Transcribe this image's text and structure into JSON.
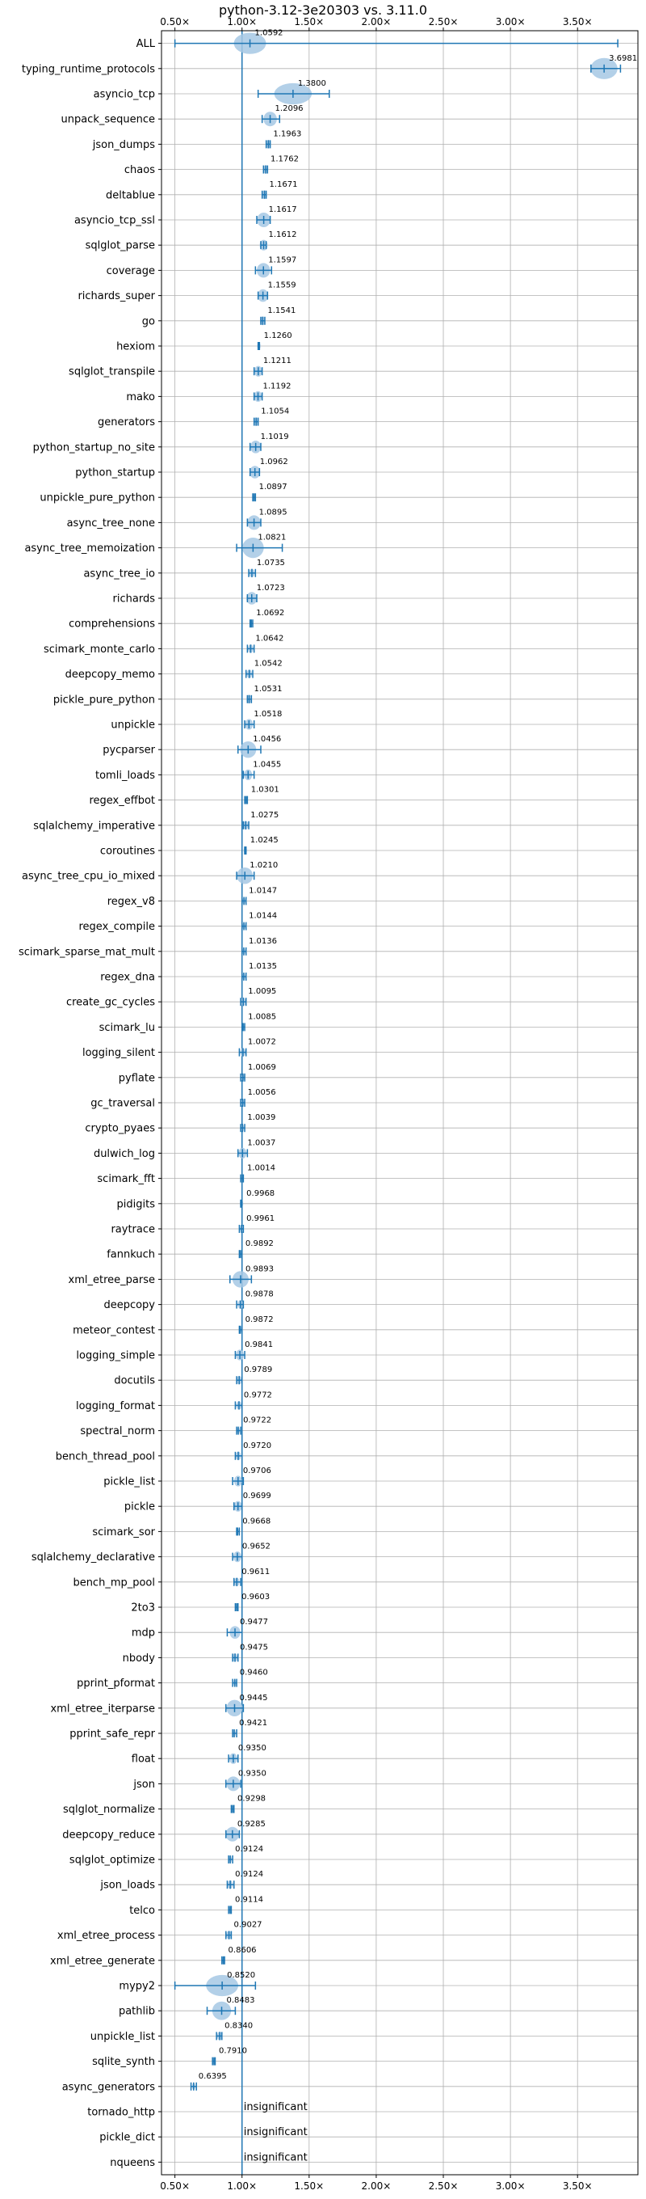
{
  "chart_data": {
    "type": "violin",
    "title": "python-3.12-3e20303 vs. 3.11.0",
    "xlabel": "",
    "ylabel": "",
    "xlim": [
      0.4,
      3.95
    ],
    "x_ticks": [
      0.5,
      1.0,
      1.5,
      2.0,
      2.5,
      3.0,
      3.5
    ],
    "x_tick_labels": [
      "0.50×",
      "1.00×",
      "1.50×",
      "2.00×",
      "2.50×",
      "3.00×",
      "3.50×"
    ],
    "grid": true,
    "reference_line": 1.0,
    "insignificant_label": "insignificant",
    "benchmarks": [
      {
        "name": "ALL",
        "label": "1.0592",
        "median": 1.0592,
        "min": 0.5,
        "max": 3.8,
        "spread": 0.12,
        "significant": true
      },
      {
        "name": "typing_runtime_protocols",
        "label": "3.6981",
        "median": 3.6981,
        "min": 3.6,
        "max": 3.82,
        "spread": 0.1,
        "significant": true
      },
      {
        "name": "asyncio_tcp",
        "label": "1.3800",
        "median": 1.38,
        "min": 1.12,
        "max": 1.65,
        "spread": 0.14,
        "significant": true
      },
      {
        "name": "unpack_sequence",
        "label": "1.2096",
        "median": 1.2096,
        "min": 1.15,
        "max": 1.28,
        "spread": 0.05,
        "significant": true
      },
      {
        "name": "json_dumps",
        "label": "1.1963",
        "median": 1.1963,
        "min": 1.18,
        "max": 1.21,
        "spread": 0.02,
        "significant": true
      },
      {
        "name": "chaos",
        "label": "1.1762",
        "median": 1.1762,
        "min": 1.16,
        "max": 1.19,
        "spread": 0.02,
        "significant": true
      },
      {
        "name": "deltablue",
        "label": "1.1671",
        "median": 1.1671,
        "min": 1.15,
        "max": 1.18,
        "spread": 0.02,
        "significant": true
      },
      {
        "name": "asyncio_tcp_ssl",
        "label": "1.1617",
        "median": 1.1617,
        "min": 1.11,
        "max": 1.21,
        "spread": 0.05,
        "significant": true
      },
      {
        "name": "sqlglot_parse",
        "label": "1.1612",
        "median": 1.1612,
        "min": 1.14,
        "max": 1.18,
        "spread": 0.03,
        "significant": true
      },
      {
        "name": "coverage",
        "label": "1.1597",
        "median": 1.1597,
        "min": 1.1,
        "max": 1.22,
        "spread": 0.05,
        "significant": true
      },
      {
        "name": "richards_super",
        "label": "1.1559",
        "median": 1.1559,
        "min": 1.12,
        "max": 1.19,
        "spread": 0.04,
        "significant": true
      },
      {
        "name": "go",
        "label": "1.1541",
        "median": 1.1541,
        "min": 1.14,
        "max": 1.17,
        "spread": 0.02,
        "significant": true
      },
      {
        "name": "hexiom",
        "label": "1.1260",
        "median": 1.126,
        "min": 1.12,
        "max": 1.13,
        "spread": 0.01,
        "significant": true
      },
      {
        "name": "sqlglot_transpile",
        "label": "1.1211",
        "median": 1.1211,
        "min": 1.09,
        "max": 1.15,
        "spread": 0.03,
        "significant": true
      },
      {
        "name": "mako",
        "label": "1.1192",
        "median": 1.1192,
        "min": 1.09,
        "max": 1.15,
        "spread": 0.03,
        "significant": true
      },
      {
        "name": "generators",
        "label": "1.1054",
        "median": 1.1054,
        "min": 1.09,
        "max": 1.12,
        "spread": 0.02,
        "significant": true
      },
      {
        "name": "python_startup_no_site",
        "label": "1.1019",
        "median": 1.1019,
        "min": 1.06,
        "max": 1.14,
        "spread": 0.04,
        "significant": true
      },
      {
        "name": "python_startup",
        "label": "1.0962",
        "median": 1.0962,
        "min": 1.06,
        "max": 1.13,
        "spread": 0.04,
        "significant": true
      },
      {
        "name": "unpickle_pure_python",
        "label": "1.0897",
        "median": 1.0897,
        "min": 1.08,
        "max": 1.1,
        "spread": 0.01,
        "significant": true
      },
      {
        "name": "async_tree_none",
        "label": "1.0895",
        "median": 1.0895,
        "min": 1.04,
        "max": 1.14,
        "spread": 0.05,
        "significant": true
      },
      {
        "name": "async_tree_memoization",
        "label": "1.0821",
        "median": 1.0821,
        "min": 0.96,
        "max": 1.3,
        "spread": 0.08,
        "significant": true
      },
      {
        "name": "async_tree_io",
        "label": "1.0735",
        "median": 1.0735,
        "min": 1.05,
        "max": 1.1,
        "spread": 0.02,
        "significant": true
      },
      {
        "name": "richards",
        "label": "1.0723",
        "median": 1.0723,
        "min": 1.04,
        "max": 1.11,
        "spread": 0.04,
        "significant": true
      },
      {
        "name": "comprehensions",
        "label": "1.0692",
        "median": 1.0692,
        "min": 1.06,
        "max": 1.08,
        "spread": 0.01,
        "significant": true
      },
      {
        "name": "scimark_monte_carlo",
        "label": "1.0642",
        "median": 1.0642,
        "min": 1.04,
        "max": 1.09,
        "spread": 0.02,
        "significant": true
      },
      {
        "name": "deepcopy_memo",
        "label": "1.0542",
        "median": 1.0542,
        "min": 1.03,
        "max": 1.08,
        "spread": 0.02,
        "significant": true
      },
      {
        "name": "pickle_pure_python",
        "label": "1.0531",
        "median": 1.0531,
        "min": 1.04,
        "max": 1.07,
        "spread": 0.02,
        "significant": true
      },
      {
        "name": "unpickle",
        "label": "1.0518",
        "median": 1.0518,
        "min": 1.02,
        "max": 1.09,
        "spread": 0.03,
        "significant": true
      },
      {
        "name": "pycparser",
        "label": "1.0456",
        "median": 1.0456,
        "min": 0.97,
        "max": 1.14,
        "spread": 0.06,
        "significant": true
      },
      {
        "name": "tomli_loads",
        "label": "1.0455",
        "median": 1.0455,
        "min": 1.01,
        "max": 1.09,
        "spread": 0.03,
        "significant": true
      },
      {
        "name": "regex_effbot",
        "label": "1.0301",
        "median": 1.0301,
        "min": 1.02,
        "max": 1.04,
        "spread": 0.01,
        "significant": true
      },
      {
        "name": "sqlalchemy_imperative",
        "label": "1.0275",
        "median": 1.0275,
        "min": 1.01,
        "max": 1.05,
        "spread": 0.02,
        "significant": true
      },
      {
        "name": "coroutines",
        "label": "1.0245",
        "median": 1.0245,
        "min": 1.02,
        "max": 1.03,
        "spread": 0.01,
        "significant": true
      },
      {
        "name": "async_tree_cpu_io_mixed",
        "label": "1.0210",
        "median": 1.021,
        "min": 0.96,
        "max": 1.09,
        "spread": 0.06,
        "significant": true
      },
      {
        "name": "regex_v8",
        "label": "1.0147",
        "median": 1.0147,
        "min": 1.0,
        "max": 1.03,
        "spread": 0.01,
        "significant": true
      },
      {
        "name": "regex_compile",
        "label": "1.0144",
        "median": 1.0144,
        "min": 1.0,
        "max": 1.03,
        "spread": 0.01,
        "significant": true
      },
      {
        "name": "scimark_sparse_mat_mult",
        "label": "1.0136",
        "median": 1.0136,
        "min": 1.0,
        "max": 1.03,
        "spread": 0.01,
        "significant": true
      },
      {
        "name": "regex_dna",
        "label": "1.0135",
        "median": 1.0135,
        "min": 1.0,
        "max": 1.03,
        "spread": 0.01,
        "significant": true
      },
      {
        "name": "create_gc_cycles",
        "label": "1.0095",
        "median": 1.0095,
        "min": 0.99,
        "max": 1.03,
        "spread": 0.02,
        "significant": true
      },
      {
        "name": "scimark_lu",
        "label": "1.0085",
        "median": 1.0085,
        "min": 1.0,
        "max": 1.02,
        "spread": 0.01,
        "significant": true
      },
      {
        "name": "logging_silent",
        "label": "1.0072",
        "median": 1.0072,
        "min": 0.98,
        "max": 1.03,
        "spread": 0.02,
        "significant": true
      },
      {
        "name": "pyflate",
        "label": "1.0069",
        "median": 1.0069,
        "min": 0.99,
        "max": 1.02,
        "spread": 0.01,
        "significant": true
      },
      {
        "name": "gc_traversal",
        "label": "1.0056",
        "median": 1.0056,
        "min": 0.99,
        "max": 1.02,
        "spread": 0.01,
        "significant": true
      },
      {
        "name": "crypto_pyaes",
        "label": "1.0039",
        "median": 1.0039,
        "min": 0.99,
        "max": 1.02,
        "spread": 0.01,
        "significant": true
      },
      {
        "name": "dulwich_log",
        "label": "1.0037",
        "median": 1.0037,
        "min": 0.97,
        "max": 1.04,
        "spread": 0.03,
        "significant": true
      },
      {
        "name": "scimark_fft",
        "label": "1.0014",
        "median": 1.0014,
        "min": 0.99,
        "max": 1.01,
        "spread": 0.01,
        "significant": true
      },
      {
        "name": "pidigits",
        "label": "0.9968",
        "median": 0.9968,
        "min": 0.99,
        "max": 1.0,
        "spread": 0.01,
        "significant": true
      },
      {
        "name": "raytrace",
        "label": "0.9961",
        "median": 0.9961,
        "min": 0.98,
        "max": 1.01,
        "spread": 0.01,
        "significant": true
      },
      {
        "name": "fannkuch",
        "label": "0.9892",
        "median": 0.9892,
        "min": 0.98,
        "max": 1.0,
        "spread": 0.01,
        "significant": true
      },
      {
        "name": "xml_etree_parse",
        "label": "0.9893",
        "median": 0.9893,
        "min": 0.91,
        "max": 1.07,
        "spread": 0.06,
        "significant": true
      },
      {
        "name": "deepcopy",
        "label": "0.9878",
        "median": 0.9878,
        "min": 0.96,
        "max": 1.01,
        "spread": 0.02,
        "significant": true
      },
      {
        "name": "meteor_contest",
        "label": "0.9872",
        "median": 0.9872,
        "min": 0.98,
        "max": 1.0,
        "spread": 0.01,
        "significant": true
      },
      {
        "name": "logging_simple",
        "label": "0.9841",
        "median": 0.9841,
        "min": 0.95,
        "max": 1.02,
        "spread": 0.03,
        "significant": true
      },
      {
        "name": "docutils",
        "label": "0.9789",
        "median": 0.9789,
        "min": 0.96,
        "max": 1.0,
        "spread": 0.02,
        "significant": true
      },
      {
        "name": "logging_format",
        "label": "0.9772",
        "median": 0.9772,
        "min": 0.95,
        "max": 1.0,
        "spread": 0.02,
        "significant": true
      },
      {
        "name": "spectral_norm",
        "label": "0.9722",
        "median": 0.9722,
        "min": 0.96,
        "max": 0.99,
        "spread": 0.01,
        "significant": true
      },
      {
        "name": "bench_thread_pool",
        "label": "0.9720",
        "median": 0.972,
        "min": 0.95,
        "max": 1.0,
        "spread": 0.02,
        "significant": true
      },
      {
        "name": "pickle_list",
        "label": "0.9706",
        "median": 0.9706,
        "min": 0.93,
        "max": 1.01,
        "spread": 0.03,
        "significant": true
      },
      {
        "name": "pickle",
        "label": "0.9699",
        "median": 0.9699,
        "min": 0.94,
        "max": 1.0,
        "spread": 0.03,
        "significant": true
      },
      {
        "name": "scimark_sor",
        "label": "0.9668",
        "median": 0.9668,
        "min": 0.96,
        "max": 0.98,
        "spread": 0.01,
        "significant": true
      },
      {
        "name": "sqlalchemy_declarative",
        "label": "0.9652",
        "median": 0.9652,
        "min": 0.93,
        "max": 1.0,
        "spread": 0.03,
        "significant": true
      },
      {
        "name": "bench_mp_pool",
        "label": "0.9611",
        "median": 0.9611,
        "min": 0.94,
        "max": 0.99,
        "spread": 0.02,
        "significant": true
      },
      {
        "name": "2to3",
        "label": "0.9603",
        "median": 0.9603,
        "min": 0.95,
        "max": 0.97,
        "spread": 0.01,
        "significant": true
      },
      {
        "name": "mdp",
        "label": "0.9477",
        "median": 0.9477,
        "min": 0.89,
        "max": 1.0,
        "spread": 0.04,
        "significant": true
      },
      {
        "name": "nbody",
        "label": "0.9475",
        "median": 0.9475,
        "min": 0.93,
        "max": 0.97,
        "spread": 0.02,
        "significant": true
      },
      {
        "name": "pprint_pformat",
        "label": "0.9460",
        "median": 0.946,
        "min": 0.93,
        "max": 0.96,
        "spread": 0.01,
        "significant": true
      },
      {
        "name": "xml_etree_iterparse",
        "label": "0.9445",
        "median": 0.9445,
        "min": 0.88,
        "max": 1.01,
        "spread": 0.06,
        "significant": true
      },
      {
        "name": "pprint_safe_repr",
        "label": "0.9421",
        "median": 0.9421,
        "min": 0.93,
        "max": 0.96,
        "spread": 0.01,
        "significant": true
      },
      {
        "name": "float",
        "label": "0.9350",
        "median": 0.935,
        "min": 0.9,
        "max": 0.97,
        "spread": 0.03,
        "significant": true
      },
      {
        "name": "json",
        "label": "0.9350",
        "median": 0.935,
        "min": 0.88,
        "max": 0.99,
        "spread": 0.05,
        "significant": true
      },
      {
        "name": "sqlglot_normalize",
        "label": "0.9298",
        "median": 0.9298,
        "min": 0.92,
        "max": 0.94,
        "spread": 0.01,
        "significant": true
      },
      {
        "name": "deepcopy_reduce",
        "label": "0.9285",
        "median": 0.9285,
        "min": 0.88,
        "max": 0.98,
        "spread": 0.05,
        "significant": true
      },
      {
        "name": "sqlglot_optimize",
        "label": "0.9124",
        "median": 0.9124,
        "min": 0.9,
        "max": 0.93,
        "spread": 0.01,
        "significant": true
      },
      {
        "name": "json_loads",
        "label": "0.9124",
        "median": 0.9124,
        "min": 0.89,
        "max": 0.94,
        "spread": 0.02,
        "significant": true
      },
      {
        "name": "telco",
        "label": "0.9114",
        "median": 0.9114,
        "min": 0.9,
        "max": 0.92,
        "spread": 0.01,
        "significant": true
      },
      {
        "name": "xml_etree_process",
        "label": "0.9027",
        "median": 0.9027,
        "min": 0.88,
        "max": 0.92,
        "spread": 0.02,
        "significant": true
      },
      {
        "name": "xml_etree_generate",
        "label": "0.8606",
        "median": 0.8606,
        "min": 0.85,
        "max": 0.87,
        "spread": 0.01,
        "significant": true
      },
      {
        "name": "mypy2",
        "label": "0.8520",
        "median": 0.852,
        "min": 0.5,
        "max": 1.1,
        "spread": 0.12,
        "significant": true
      },
      {
        "name": "pathlib",
        "label": "0.8483",
        "median": 0.8483,
        "min": 0.74,
        "max": 0.95,
        "spread": 0.07,
        "significant": true
      },
      {
        "name": "unpickle_list",
        "label": "0.8340",
        "median": 0.834,
        "min": 0.81,
        "max": 0.85,
        "spread": 0.02,
        "significant": true
      },
      {
        "name": "sqlite_synth",
        "label": "0.7910",
        "median": 0.791,
        "min": 0.78,
        "max": 0.8,
        "spread": 0.01,
        "significant": true
      },
      {
        "name": "async_generators",
        "label": "0.6395",
        "median": 0.6395,
        "min": 0.62,
        "max": 0.66,
        "spread": 0.01,
        "significant": true
      },
      {
        "name": "tornado_http",
        "label": "",
        "median": 1.0,
        "min": 1.0,
        "max": 1.0,
        "spread": 0,
        "significant": false
      },
      {
        "name": "pickle_dict",
        "label": "",
        "median": 1.0,
        "min": 1.0,
        "max": 1.0,
        "spread": 0,
        "significant": false
      },
      {
        "name": "nqueens",
        "label": "",
        "median": 1.0,
        "min": 1.0,
        "max": 1.0,
        "spread": 0,
        "significant": false
      }
    ],
    "colors": {
      "body": "#1f77b4",
      "violin_fill": "#a6c8e4",
      "grid": "#b0b0b0",
      "axis": "#000000"
    }
  }
}
